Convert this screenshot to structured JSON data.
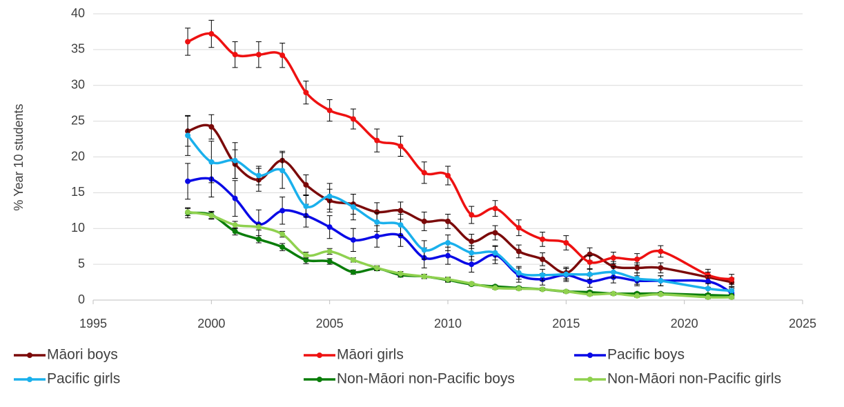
{
  "chart_data": {
    "type": "line",
    "y_label": "% Year 10 students",
    "x": [
      1999,
      2000,
      2001,
      2002,
      2003,
      2004,
      2005,
      2006,
      2007,
      2008,
      2009,
      2010,
      2011,
      2012,
      2013,
      2014,
      2015,
      2016,
      2017,
      2018,
      2019,
      2021,
      2022
    ],
    "xlim": [
      1995,
      2025
    ],
    "xticks": [
      1995,
      2000,
      2005,
      2010,
      2015,
      2020,
      2025
    ],
    "ylim": [
      0,
      40
    ],
    "yticks": [
      0,
      5,
      10,
      15,
      20,
      25,
      30,
      35,
      40
    ],
    "grid": true,
    "legend_position": "bottom",
    "series": [
      {
        "name": "Māori boys",
        "color": "#7b0a0a",
        "values": [
          23.6,
          24.2,
          19.0,
          16.8,
          19.5,
          16.1,
          13.9,
          13.4,
          12.3,
          12.5,
          11.0,
          11.0,
          8.2,
          9.4,
          6.8,
          5.7,
          3.8,
          6.4,
          4.7,
          4.5,
          4.5,
          3.2,
          2.5
        ],
        "errors": [
          2.1,
          1.7,
          2.0,
          1.6,
          1.3,
          1.4,
          1.6,
          1.4,
          1.3,
          1.2,
          1.3,
          1.0,
          1.0,
          1.0,
          0.9,
          0.9,
          0.8,
          0.9,
          0.7,
          0.7,
          0.7,
          0.7,
          0.6
        ]
      },
      {
        "name": "Māori girls",
        "color": "#ee1111",
        "values": [
          36.1,
          37.2,
          34.3,
          34.3,
          34.2,
          29.0,
          26.5,
          25.3,
          22.3,
          21.5,
          17.8,
          17.4,
          11.9,
          12.8,
          10.1,
          8.5,
          8.0,
          5.3,
          5.9,
          5.7,
          6.8,
          3.5,
          2.9
        ],
        "errors": [
          1.9,
          1.9,
          1.8,
          1.8,
          1.7,
          1.6,
          1.5,
          1.4,
          1.6,
          1.4,
          1.5,
          1.3,
          1.2,
          1.1,
          1.1,
          1.0,
          1.0,
          0.9,
          0.8,
          0.8,
          0.8,
          0.8,
          0.7
        ]
      },
      {
        "name": "Pacific boys",
        "color": "#0a0ae6",
        "values": [
          16.6,
          16.9,
          14.2,
          10.6,
          12.5,
          11.8,
          10.2,
          8.4,
          8.9,
          9.0,
          5.9,
          6.2,
          5.0,
          6.3,
          3.5,
          2.9,
          3.5,
          2.6,
          3.2,
          2.7,
          2.7,
          2.6,
          1.0
        ],
        "errors": [
          2.5,
          2.5,
          2.5,
          2.0,
          1.9,
          1.6,
          1.6,
          1.6,
          1.5,
          1.5,
          1.4,
          1.2,
          1.1,
          1.2,
          1.0,
          0.8,
          0.9,
          0.8,
          0.8,
          0.7,
          0.7,
          0.8,
          0.6
        ]
      },
      {
        "name": "Pacific girls",
        "color": "#1ab0ec",
        "values": [
          23.0,
          19.3,
          19.5,
          17.4,
          18.1,
          13.1,
          14.5,
          13.0,
          10.9,
          10.5,
          7.0,
          8.0,
          6.6,
          6.6,
          3.8,
          3.5,
          3.6,
          3.6,
          3.9,
          3.0,
          2.7,
          1.6,
          1.3
        ],
        "errors": [
          2.8,
          2.9,
          2.5,
          1.3,
          2.5,
          1.5,
          1.8,
          1.8,
          1.3,
          1.5,
          1.3,
          1.1,
          1.0,
          1.0,
          0.9,
          0.8,
          0.8,
          0.7,
          0.8,
          0.8,
          0.7,
          0.7,
          0.5
        ]
      },
      {
        "name": "Non-Māori non-Pacific boys",
        "color": "#0a7d0a",
        "values": [
          12.2,
          11.9,
          9.6,
          8.5,
          7.4,
          5.6,
          5.4,
          3.9,
          4.4,
          3.5,
          3.3,
          2.8,
          2.2,
          1.9,
          1.7,
          1.5,
          1.2,
          1.1,
          0.9,
          0.9,
          0.9,
          0.7,
          0.6
        ],
        "errors": [
          0.7,
          0.5,
          0.5,
          0.5,
          0.5,
          0.5,
          0.4,
          0.3,
          0.3,
          0.3,
          0.3,
          0.3,
          0.2,
          0.2,
          0.2,
          0.2,
          0.2,
          0.2,
          0.2,
          0.2,
          0.2,
          0.2,
          0.2
        ]
      },
      {
        "name": "Non-Māori non-Pacific girls",
        "color": "#8fd14f",
        "values": [
          12.3,
          11.8,
          10.5,
          10.2,
          9.2,
          6.3,
          6.8,
          5.6,
          4.5,
          3.7,
          3.3,
          2.9,
          2.3,
          1.7,
          1.6,
          1.5,
          1.2,
          0.8,
          0.9,
          0.6,
          0.8,
          0.4,
          0.4
        ],
        "errors": [
          0.5,
          0.5,
          0.5,
          0.4,
          0.4,
          0.4,
          0.4,
          0.3,
          0.3,
          0.3,
          0.3,
          0.3,
          0.2,
          0.2,
          0.2,
          0.2,
          0.2,
          0.2,
          0.2,
          0.2,
          0.2,
          0.2,
          0.2
        ]
      }
    ]
  }
}
